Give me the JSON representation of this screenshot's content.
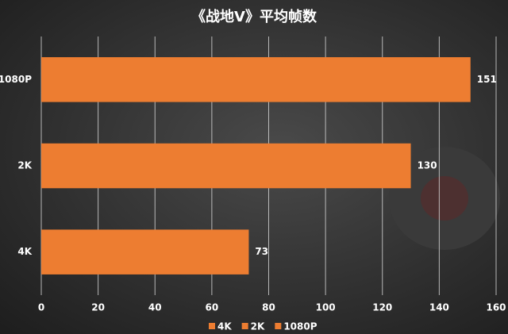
{
  "chart_data": {
    "type": "hbar",
    "title": "《战地V》平均帧数",
    "categories": [
      "4K",
      "2K",
      "1080P"
    ],
    "values": [
      73,
      130,
      151
    ],
    "color": "#ed7d31",
    "xlim": [
      0,
      160
    ],
    "xticks": [
      0,
      20,
      40,
      60,
      80,
      100,
      120,
      140,
      160
    ],
    "grid": true,
    "legend": "bottom"
  }
}
